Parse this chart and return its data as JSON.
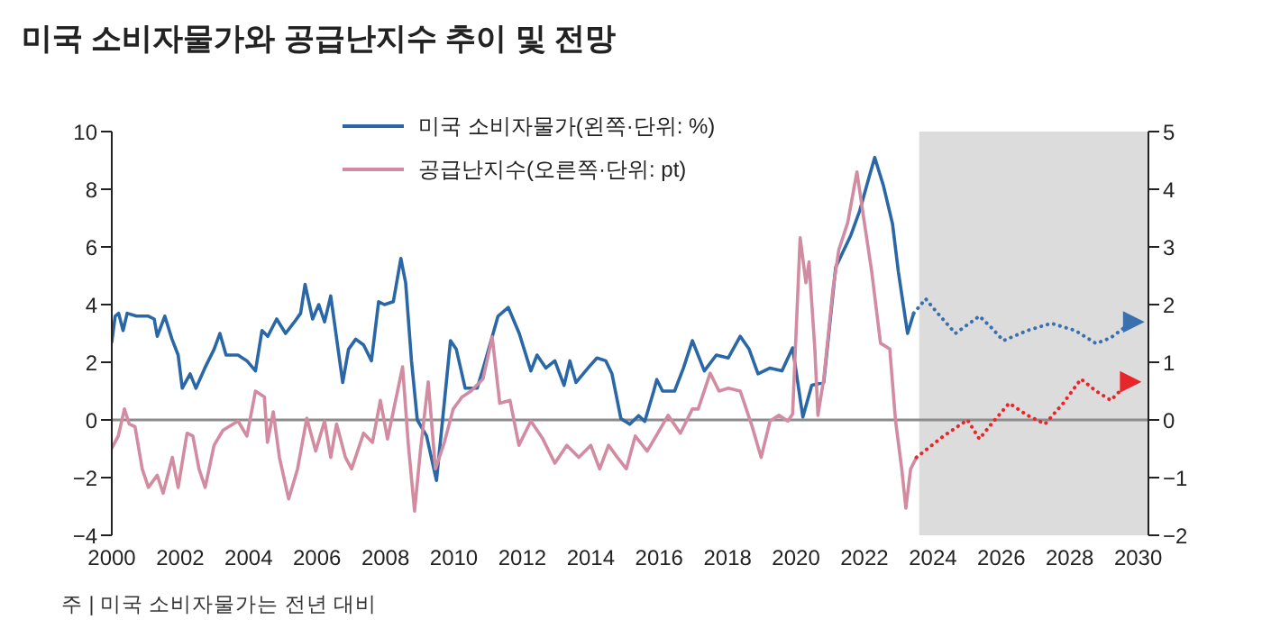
{
  "chart_data": {
    "type": "line",
    "title": "미국 소비자물가와 공급난지수 추이 및 전망",
    "annotations": [
      "주 | 미국 소비자물가는 전년 대비"
    ],
    "xlim": [
      2000,
      2030.3
    ],
    "xticks": [
      2000,
      2002,
      2004,
      2006,
      2008,
      2010,
      2012,
      2014,
      2016,
      2018,
      2020,
      2022,
      2024,
      2026,
      2028,
      2030
    ],
    "ylim": [
      -4,
      10
    ],
    "yticks": [
      -4,
      -2,
      0,
      2,
      4,
      6,
      8,
      10
    ],
    "y2lim": [
      -2,
      5
    ],
    "y2ticks": [
      -2,
      -1,
      0,
      1,
      2,
      3,
      4,
      5
    ],
    "legend": "top",
    "ref_lines": [
      {
        "axis": "y",
        "value": 0,
        "color": "#8c8c8c"
      }
    ],
    "bands": [
      {
        "axis": "x",
        "from": 2023.6,
        "to": 2030.3,
        "color": "#dcdcdc"
      }
    ],
    "series": [
      {
        "name": "미국 소비자물가(왼쪽·단위: %)",
        "color": "#2a67a6",
        "axis": "y",
        "x": [
          2000.0,
          2000.1,
          2000.2,
          2000.33,
          2000.45,
          2000.72,
          2001.07,
          2001.24,
          2001.33,
          2001.55,
          2001.76,
          2001.94,
          2002.06,
          2002.29,
          2002.46,
          2002.72,
          2002.99,
          2003.16,
          2003.34,
          2003.69,
          2003.95,
          2004.2,
          2004.39,
          2004.56,
          2004.82,
          2005.08,
          2005.34,
          2005.52,
          2005.65,
          2005.87,
          2006.05,
          2006.22,
          2006.4,
          2006.75,
          2006.92,
          2007.13,
          2007.36,
          2007.59,
          2007.8,
          2007.97,
          2008.23,
          2008.45,
          2008.59,
          2008.76,
          2008.93,
          2009.2,
          2009.49,
          2009.72,
          2009.9,
          2010.07,
          2010.33,
          2010.68,
          2010.86,
          2011.29,
          2011.59,
          2011.91,
          2012.25,
          2012.43,
          2012.69,
          2012.95,
          2013.22,
          2013.39,
          2013.57,
          2013.92,
          2014.18,
          2014.44,
          2014.62,
          2014.88,
          2015.14,
          2015.4,
          2015.58,
          2015.84,
          2015.93,
          2016.1,
          2016.45,
          2016.71,
          2016.97,
          2017.32,
          2017.67,
          2018.02,
          2018.37,
          2018.63,
          2018.89,
          2019.24,
          2019.59,
          2019.9,
          2020.2,
          2020.46,
          2020.81,
          2021.16,
          2021.6,
          2021.86,
          2022.13,
          2022.3,
          2022.56,
          2022.82,
          2022.99,
          2023.26,
          2023.44
        ],
        "values": [
          2.7,
          3.6,
          3.7,
          3.1,
          3.7,
          3.6,
          3.6,
          3.5,
          2.9,
          3.6,
          2.8,
          2.25,
          1.1,
          1.6,
          1.1,
          1.8,
          2.45,
          3.0,
          2.25,
          2.25,
          2.05,
          1.7,
          3.1,
          2.9,
          3.5,
          3.0,
          3.4,
          3.7,
          4.7,
          3.5,
          4.0,
          3.4,
          4.3,
          1.3,
          2.45,
          2.8,
          2.6,
          2.05,
          4.1,
          4.0,
          4.1,
          5.6,
          4.75,
          2.05,
          0.0,
          -0.55,
          -2.1,
          0.6,
          2.75,
          2.45,
          1.1,
          1.1,
          1.8,
          3.6,
          3.9,
          3.0,
          1.7,
          2.25,
          1.8,
          2.05,
          1.2,
          2.05,
          1.3,
          1.8,
          2.15,
          2.05,
          1.6,
          0.05,
          -0.15,
          0.15,
          -0.05,
          1.0,
          1.4,
          1.0,
          1.0,
          1.8,
          2.75,
          1.7,
          2.25,
          2.15,
          2.9,
          2.45,
          1.6,
          1.8,
          1.7,
          2.5,
          0.1,
          1.2,
          1.3,
          5.3,
          6.4,
          7.25,
          8.4,
          9.1,
          8.1,
          6.8,
          5.15,
          3.0,
          3.7
        ]
      },
      {
        "name": "공급난지수(오른쪽·단위: pt)",
        "color": "#d28ba0",
        "axis": "y2",
        "x": [
          2000.0,
          2000.19,
          2000.37,
          2000.51,
          2000.68,
          2000.89,
          2001.07,
          2001.33,
          2001.5,
          2001.77,
          2001.94,
          2002.2,
          2002.37,
          2002.55,
          2002.73,
          2002.99,
          2003.25,
          2003.69,
          2003.95,
          2004.2,
          2004.46,
          2004.55,
          2004.72,
          2004.9,
          2005.17,
          2005.43,
          2005.7,
          2005.96,
          2006.22,
          2006.4,
          2006.57,
          2006.83,
          2007.01,
          2007.36,
          2007.62,
          2007.85,
          2008.06,
          2008.5,
          2008.67,
          2008.85,
          2009.02,
          2009.25,
          2009.46,
          2009.72,
          2009.98,
          2010.24,
          2010.5,
          2010.85,
          2011.12,
          2011.34,
          2011.64,
          2011.9,
          2012.25,
          2012.6,
          2012.95,
          2013.3,
          2013.65,
          2014.0,
          2014.26,
          2014.52,
          2014.78,
          2015.04,
          2015.3,
          2015.65,
          2015.91,
          2016.26,
          2016.62,
          2016.97,
          2017.14,
          2017.49,
          2017.75,
          2018.02,
          2018.37,
          2018.72,
          2018.98,
          2019.24,
          2019.5,
          2019.76,
          2019.9,
          2020.12,
          2020.29,
          2020.38,
          2020.55,
          2020.64,
          2020.81,
          2021.08,
          2021.25,
          2021.51,
          2021.78,
          2021.96,
          2022.21,
          2022.47,
          2022.74,
          2022.91,
          2023.09,
          2023.21,
          2023.35,
          2023.52
        ],
        "values": [
          -0.49,
          -0.28,
          0.19,
          -0.07,
          -0.12,
          -0.85,
          -1.17,
          -0.96,
          -1.27,
          -0.65,
          -1.17,
          -0.23,
          -0.28,
          -0.85,
          -1.17,
          -0.44,
          -0.18,
          -0.02,
          -0.28,
          0.5,
          0.4,
          -0.39,
          0.14,
          -0.65,
          -1.37,
          -0.85,
          0.03,
          -0.54,
          -0.02,
          -0.65,
          -0.07,
          -0.65,
          -0.85,
          -0.23,
          -0.39,
          0.34,
          -0.33,
          0.92,
          -0.44,
          -1.58,
          -0.54,
          0.66,
          -0.85,
          -0.39,
          0.19,
          0.4,
          0.5,
          0.71,
          1.44,
          0.29,
          0.34,
          -0.44,
          -0.02,
          -0.33,
          -0.75,
          -0.44,
          -0.65,
          -0.44,
          -0.85,
          -0.44,
          -0.65,
          -0.85,
          -0.28,
          -0.54,
          -0.28,
          0.08,
          -0.23,
          0.19,
          0.19,
          0.81,
          0.5,
          0.55,
          0.5,
          -0.12,
          -0.65,
          -0.02,
          0.08,
          -0.02,
          0.1,
          3.16,
          2.38,
          2.74,
          1.23,
          0.08,
          0.71,
          2.27,
          2.95,
          3.42,
          4.3,
          3.57,
          2.58,
          1.33,
          1.23,
          -0.02,
          -0.85,
          -1.53,
          -0.85,
          -0.65
        ]
      },
      {
        "color": "#3a70ae",
        "axis": "y",
        "line_style": "dotted",
        "x": [
          2023.44,
          2023.79,
          2024.14,
          2024.66,
          2025.01,
          2025.36,
          2025.71,
          2026.06,
          2026.76,
          2027.46,
          2028.16,
          2028.77,
          2029.2,
          2029.82
        ],
        "values": [
          3.7,
          4.2,
          3.7,
          3.0,
          3.3,
          3.6,
          3.2,
          2.75,
          3.1,
          3.35,
          3.1,
          2.65,
          2.85,
          3.4
        ]
      },
      {
        "color": "#e8262a",
        "axis": "y2",
        "line_style": "dotted",
        "x": [
          2023.52,
          2024.31,
          2025.01,
          2025.36,
          2025.71,
          2026.23,
          2026.76,
          2027.28,
          2027.81,
          2028.33,
          2028.77,
          2029.2,
          2029.73
        ],
        "values": [
          -0.65,
          -0.28,
          0.0,
          -0.33,
          -0.07,
          0.29,
          0.08,
          -0.07,
          0.29,
          0.71,
          0.5,
          0.34,
          0.66
        ]
      }
    ]
  }
}
